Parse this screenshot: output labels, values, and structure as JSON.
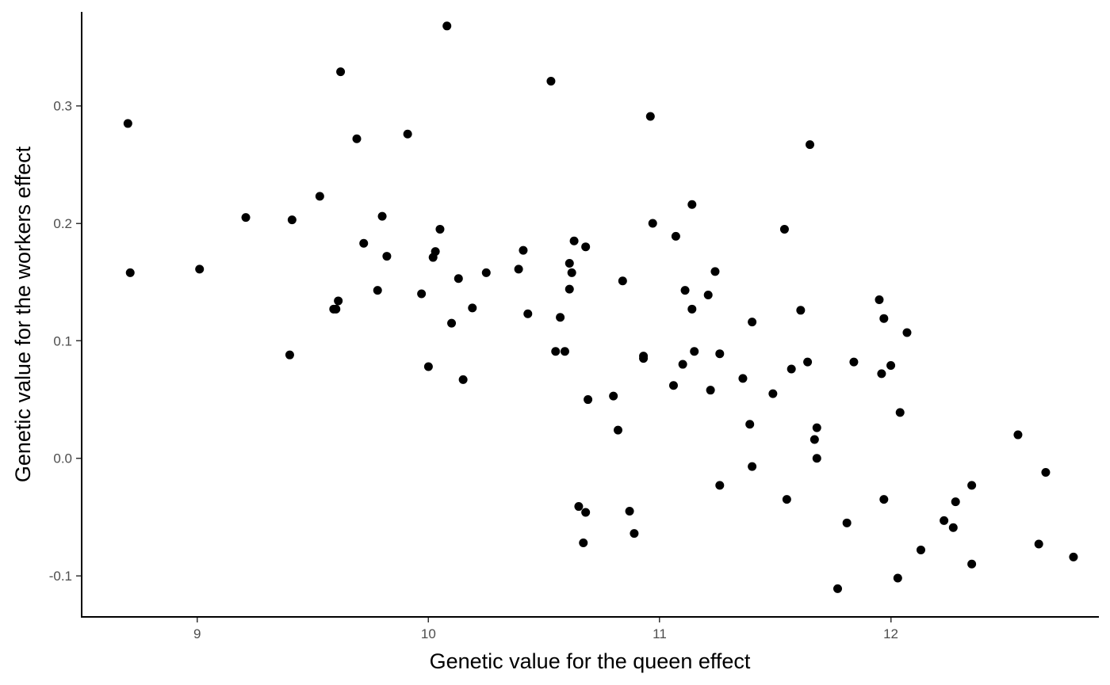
{
  "chart_data": {
    "type": "scatter",
    "xlabel": "Genetic value for the queen effect",
    "ylabel": "Genetic value for the workers effect",
    "xlim": [
      8.5,
      12.9
    ],
    "ylim": [
      -0.135,
      0.38
    ],
    "x_ticks": [
      9,
      10,
      11,
      12
    ],
    "x_tick_labels": [
      "9",
      "10",
      "11",
      "12"
    ],
    "y_ticks": [
      -0.1,
      0.0,
      0.1,
      0.2,
      0.3
    ],
    "y_tick_labels": [
      "-0.1",
      "0.0",
      "0.1",
      "0.2",
      "0.3"
    ],
    "grid": false,
    "legend": "none",
    "point_color": "#000000",
    "points": [
      {
        "x": 8.7,
        "y": 0.285
      },
      {
        "x": 8.71,
        "y": 0.158
      },
      {
        "x": 9.01,
        "y": 0.161
      },
      {
        "x": 9.21,
        "y": 0.205
      },
      {
        "x": 9.4,
        "y": 0.088
      },
      {
        "x": 9.41,
        "y": 0.203
      },
      {
        "x": 9.53,
        "y": 0.223
      },
      {
        "x": 9.59,
        "y": 0.127
      },
      {
        "x": 9.6,
        "y": 0.127
      },
      {
        "x": 9.61,
        "y": 0.134
      },
      {
        "x": 9.62,
        "y": 0.329
      },
      {
        "x": 9.69,
        "y": 0.272
      },
      {
        "x": 9.72,
        "y": 0.183
      },
      {
        "x": 9.78,
        "y": 0.143
      },
      {
        "x": 9.8,
        "y": 0.206
      },
      {
        "x": 9.82,
        "y": 0.172
      },
      {
        "x": 9.91,
        "y": 0.276
      },
      {
        "x": 9.97,
        "y": 0.14
      },
      {
        "x": 10.0,
        "y": 0.078
      },
      {
        "x": 10.02,
        "y": 0.171
      },
      {
        "x": 10.03,
        "y": 0.176
      },
      {
        "x": 10.05,
        "y": 0.195
      },
      {
        "x": 10.08,
        "y": 0.368
      },
      {
        "x": 10.1,
        "y": 0.115
      },
      {
        "x": 10.13,
        "y": 0.153
      },
      {
        "x": 10.15,
        "y": 0.067
      },
      {
        "x": 10.19,
        "y": 0.128
      },
      {
        "x": 10.25,
        "y": 0.158
      },
      {
        "x": 10.39,
        "y": 0.161
      },
      {
        "x": 10.41,
        "y": 0.177
      },
      {
        "x": 10.43,
        "y": 0.123
      },
      {
        "x": 10.53,
        "y": 0.321
      },
      {
        "x": 10.55,
        "y": 0.091
      },
      {
        "x": 10.57,
        "y": 0.12
      },
      {
        "x": 10.59,
        "y": 0.091
      },
      {
        "x": 10.61,
        "y": 0.166
      },
      {
        "x": 10.61,
        "y": 0.144
      },
      {
        "x": 10.62,
        "y": 0.158
      },
      {
        "x": 10.63,
        "y": 0.185
      },
      {
        "x": 10.65,
        "y": -0.041
      },
      {
        "x": 10.67,
        "y": -0.072
      },
      {
        "x": 10.68,
        "y": -0.046
      },
      {
        "x": 10.68,
        "y": 0.18
      },
      {
        "x": 10.69,
        "y": 0.05
      },
      {
        "x": 10.8,
        "y": 0.053
      },
      {
        "x": 10.82,
        "y": 0.024
      },
      {
        "x": 10.84,
        "y": 0.151
      },
      {
        "x": 10.87,
        "y": -0.045
      },
      {
        "x": 10.89,
        "y": -0.064
      },
      {
        "x": 10.93,
        "y": 0.085
      },
      {
        "x": 10.93,
        "y": 0.087
      },
      {
        "x": 10.96,
        "y": 0.291
      },
      {
        "x": 10.97,
        "y": 0.2
      },
      {
        "x": 11.06,
        "y": 0.062
      },
      {
        "x": 11.07,
        "y": 0.189
      },
      {
        "x": 11.1,
        "y": 0.08
      },
      {
        "x": 11.11,
        "y": 0.143
      },
      {
        "x": 11.14,
        "y": 0.216
      },
      {
        "x": 11.14,
        "y": 0.127
      },
      {
        "x": 11.15,
        "y": 0.091
      },
      {
        "x": 11.21,
        "y": 0.139
      },
      {
        "x": 11.22,
        "y": 0.058
      },
      {
        "x": 11.24,
        "y": 0.159
      },
      {
        "x": 11.26,
        "y": -0.023
      },
      {
        "x": 11.26,
        "y": 0.089
      },
      {
        "x": 11.36,
        "y": 0.068
      },
      {
        "x": 11.39,
        "y": 0.029
      },
      {
        "x": 11.4,
        "y": -0.007
      },
      {
        "x": 11.4,
        "y": 0.116
      },
      {
        "x": 11.49,
        "y": 0.055
      },
      {
        "x": 11.54,
        "y": 0.195
      },
      {
        "x": 11.55,
        "y": -0.035
      },
      {
        "x": 11.57,
        "y": 0.076
      },
      {
        "x": 11.61,
        "y": 0.126
      },
      {
        "x": 11.64,
        "y": 0.082
      },
      {
        "x": 11.65,
        "y": 0.267
      },
      {
        "x": 11.67,
        "y": 0.016
      },
      {
        "x": 11.68,
        "y": 0.026
      },
      {
        "x": 11.68,
        "y": 0.0
      },
      {
        "x": 11.77,
        "y": -0.111
      },
      {
        "x": 11.81,
        "y": -0.055
      },
      {
        "x": 11.84,
        "y": 0.082
      },
      {
        "x": 11.95,
        "y": 0.135
      },
      {
        "x": 11.96,
        "y": 0.072
      },
      {
        "x": 11.97,
        "y": 0.119
      },
      {
        "x": 11.97,
        "y": -0.035
      },
      {
        "x": 12.0,
        "y": 0.079
      },
      {
        "x": 12.03,
        "y": -0.102
      },
      {
        "x": 12.04,
        "y": 0.039
      },
      {
        "x": 12.07,
        "y": 0.107
      },
      {
        "x": 12.13,
        "y": -0.078
      },
      {
        "x": 12.23,
        "y": -0.053
      },
      {
        "x": 12.27,
        "y": -0.059
      },
      {
        "x": 12.28,
        "y": -0.037
      },
      {
        "x": 12.35,
        "y": -0.09
      },
      {
        "x": 12.35,
        "y": -0.023
      },
      {
        "x": 12.55,
        "y": 0.02
      },
      {
        "x": 12.64,
        "y": -0.073
      },
      {
        "x": 12.67,
        "y": -0.012
      },
      {
        "x": 12.79,
        "y": -0.084
      }
    ]
  }
}
